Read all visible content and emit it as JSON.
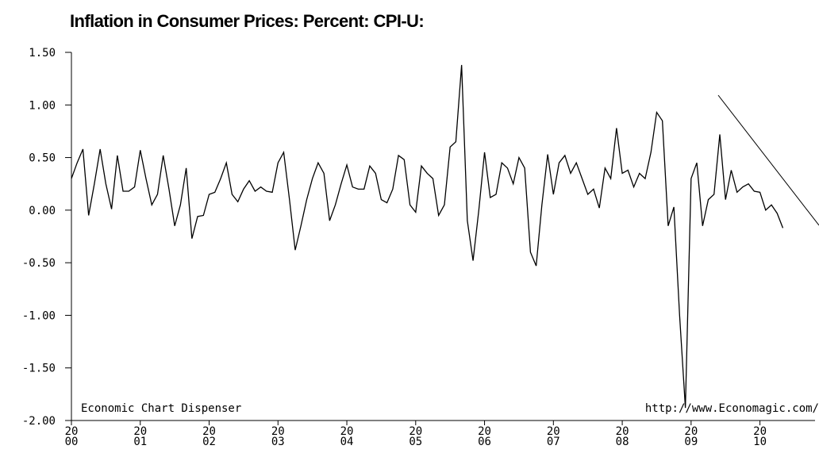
{
  "chart_data": {
    "type": "line",
    "title": "Inflation in Consumer Prices: Percent: CPI-U:",
    "annotations": [
      "Economic Chart Dispenser",
      "http://www.Economagic.com/"
    ],
    "color": "#000000",
    "x": [
      2000,
      2000.083,
      2000.167,
      2000.25,
      2000.333,
      2000.417,
      2000.5,
      2000.583,
      2000.667,
      2000.75,
      2000.833,
      2000.917,
      2001,
      2001.083,
      2001.167,
      2001.25,
      2001.333,
      2001.417,
      2001.5,
      2001.583,
      2001.667,
      2001.75,
      2001.833,
      2001.917,
      2002,
      2002.083,
      2002.167,
      2002.25,
      2002.333,
      2002.417,
      2002.5,
      2002.583,
      2002.667,
      2002.75,
      2002.833,
      2002.917,
      2003,
      2003.083,
      2003.167,
      2003.25,
      2003.333,
      2003.417,
      2003.5,
      2003.583,
      2003.667,
      2003.75,
      2003.833,
      2003.917,
      2004,
      2004.083,
      2004.167,
      2004.25,
      2004.333,
      2004.417,
      2004.5,
      2004.583,
      2004.667,
      2004.75,
      2004.833,
      2004.917,
      2005,
      2005.083,
      2005.167,
      2005.25,
      2005.333,
      2005.417,
      2005.5,
      2005.583,
      2005.667,
      2005.75,
      2005.833,
      2005.917,
      2006,
      2006.083,
      2006.167,
      2006.25,
      2006.333,
      2006.417,
      2006.5,
      2006.583,
      2006.667,
      2006.75,
      2006.833,
      2006.917,
      2007,
      2007.083,
      2007.167,
      2007.25,
      2007.333,
      2007.417,
      2007.5,
      2007.583,
      2007.667,
      2007.75,
      2007.833,
      2007.917,
      2008,
      2008.083,
      2008.167,
      2008.25,
      2008.333,
      2008.417,
      2008.5,
      2008.583,
      2008.667,
      2008.75,
      2008.833,
      2008.917,
      2009,
      2009.083,
      2009.167,
      2009.25,
      2009.333,
      2009.417,
      2009.5,
      2009.583,
      2009.667,
      2009.75,
      2009.833,
      2009.917,
      2010,
      2010.083,
      2010.167,
      2010.25,
      2010.333
    ],
    "values": [
      0.3,
      0.45,
      0.58,
      -0.05,
      0.25,
      0.58,
      0.25,
      0.01,
      0.52,
      0.18,
      0.18,
      0.22,
      0.57,
      0.3,
      0.05,
      0.15,
      0.52,
      0.2,
      -0.15,
      0.05,
      0.4,
      -0.27,
      -0.06,
      -0.05,
      0.15,
      0.17,
      0.3,
      0.45,
      0.15,
      0.08,
      0.2,
      0.28,
      0.18,
      0.22,
      0.18,
      0.17,
      0.45,
      0.55,
      0.1,
      -0.38,
      -0.15,
      0.1,
      0.3,
      0.45,
      0.35,
      -0.1,
      0.05,
      0.25,
      0.43,
      0.22,
      0.2,
      0.2,
      0.42,
      0.35,
      0.1,
      0.07,
      0.2,
      0.52,
      0.48,
      0.05,
      -0.02,
      0.42,
      0.35,
      0.3,
      -0.05,
      0.05,
      0.6,
      0.65,
      1.38,
      -0.1,
      -0.48,
      0.0,
      0.55,
      0.12,
      0.15,
      0.45,
      0.4,
      0.25,
      0.5,
      0.4,
      -0.4,
      -0.53,
      0.05,
      0.53,
      0.15,
      0.45,
      0.52,
      0.35,
      0.45,
      0.3,
      0.15,
      0.2,
      0.02,
      0.4,
      0.3,
      0.78,
      0.35,
      0.38,
      0.22,
      0.35,
      0.3,
      0.55,
      0.93,
      0.85,
      -0.15,
      0.03,
      -1.0,
      -1.88,
      0.3,
      0.45,
      -0.15,
      0.1,
      0.15,
      0.72,
      0.1,
      0.38,
      0.17,
      0.22,
      0.25,
      0.18,
      0.17,
      0.0,
      0.05,
      -0.03,
      -0.17
    ],
    "xlim": [
      2000,
      2010.8
    ],
    "xticks": [
      2000,
      2001,
      2002,
      2003,
      2004,
      2005,
      2006,
      2007,
      2008,
      2009,
      2010
    ],
    "ylim": [
      -2,
      1.5
    ],
    "yticks": [
      {
        "value": -2,
        "label": "-2.00"
      },
      {
        "value": -1.5,
        "label": "-1.50"
      },
      {
        "value": -1,
        "label": "-1.00"
      },
      {
        "value": -0.5,
        "label": "-0.50"
      },
      {
        "value": 0,
        "label": "0.00"
      },
      {
        "value": 0.5,
        "label": "0.50"
      },
      {
        "value": 1,
        "label": "1.00"
      },
      {
        "value": 1.5,
        "label": "1.50"
      }
    ]
  }
}
